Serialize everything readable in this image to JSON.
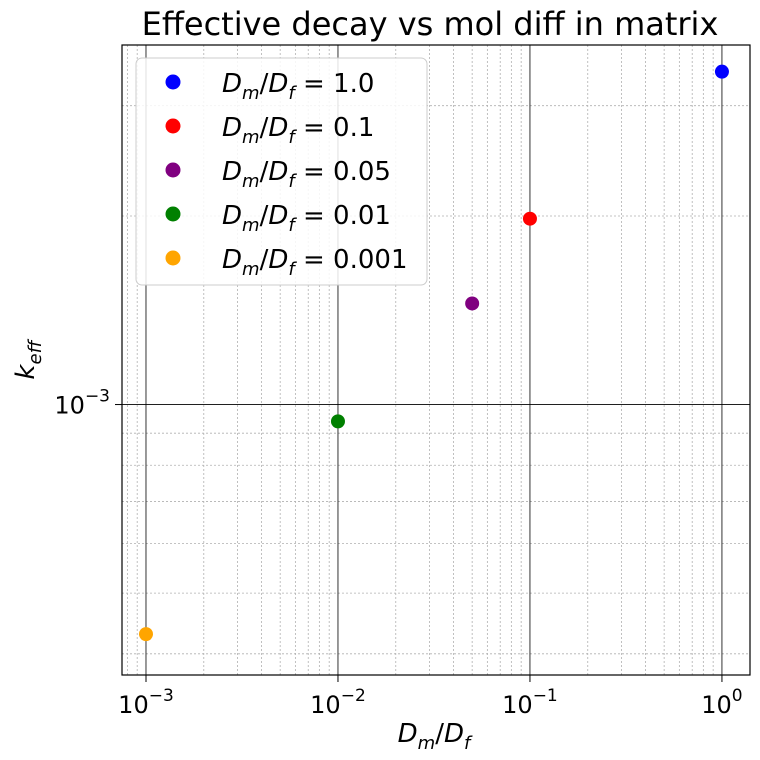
{
  "chart_data": {
    "type": "scatter",
    "title": "Effective decay vs mol diff in matrix",
    "xlabel": {
      "main": "D",
      "sub1": "m",
      "slash": "/",
      "main2": "D",
      "sub2": "f"
    },
    "ylabel": {
      "main": "k",
      "sub": "eff"
    },
    "xscale": "log",
    "yscale": "log",
    "xlim": [
      0.00075,
      1.4
    ],
    "ylim": [
      0.00037,
      0.00375
    ],
    "grid": {
      "major": true,
      "minor": true
    },
    "legend_placement": "top-left",
    "x_ticks": [
      {
        "value": 0.001,
        "base": "10",
        "exp": "−3"
      },
      {
        "value": 0.01,
        "base": "10",
        "exp": "−2"
      },
      {
        "value": 0.1,
        "base": "10",
        "exp": "−1"
      },
      {
        "value": 1,
        "base": "10",
        "exp": "0"
      }
    ],
    "y_ticks": [
      {
        "value": 0.001,
        "base": "10",
        "exp": "−3"
      }
    ],
    "series": [
      {
        "name": "1.0",
        "color": "#0000ff",
        "x": 1.0,
        "y": 0.0034
      },
      {
        "name": "0.1",
        "color": "#ff0000",
        "x": 0.1,
        "y": 0.00198
      },
      {
        "name": "0.05",
        "color": "#800080",
        "x": 0.05,
        "y": 0.00145
      },
      {
        "name": "0.01",
        "color": "#008000",
        "x": 0.01,
        "y": 0.00094
      },
      {
        "name": "0.001",
        "color": "#ffa500",
        "x": 0.001,
        "y": 0.00043
      }
    ],
    "legend_prefix": {
      "main": "D",
      "sub1": "m",
      "slash": "/",
      "main2": "D",
      "sub2": "f",
      "eq": " = "
    }
  }
}
